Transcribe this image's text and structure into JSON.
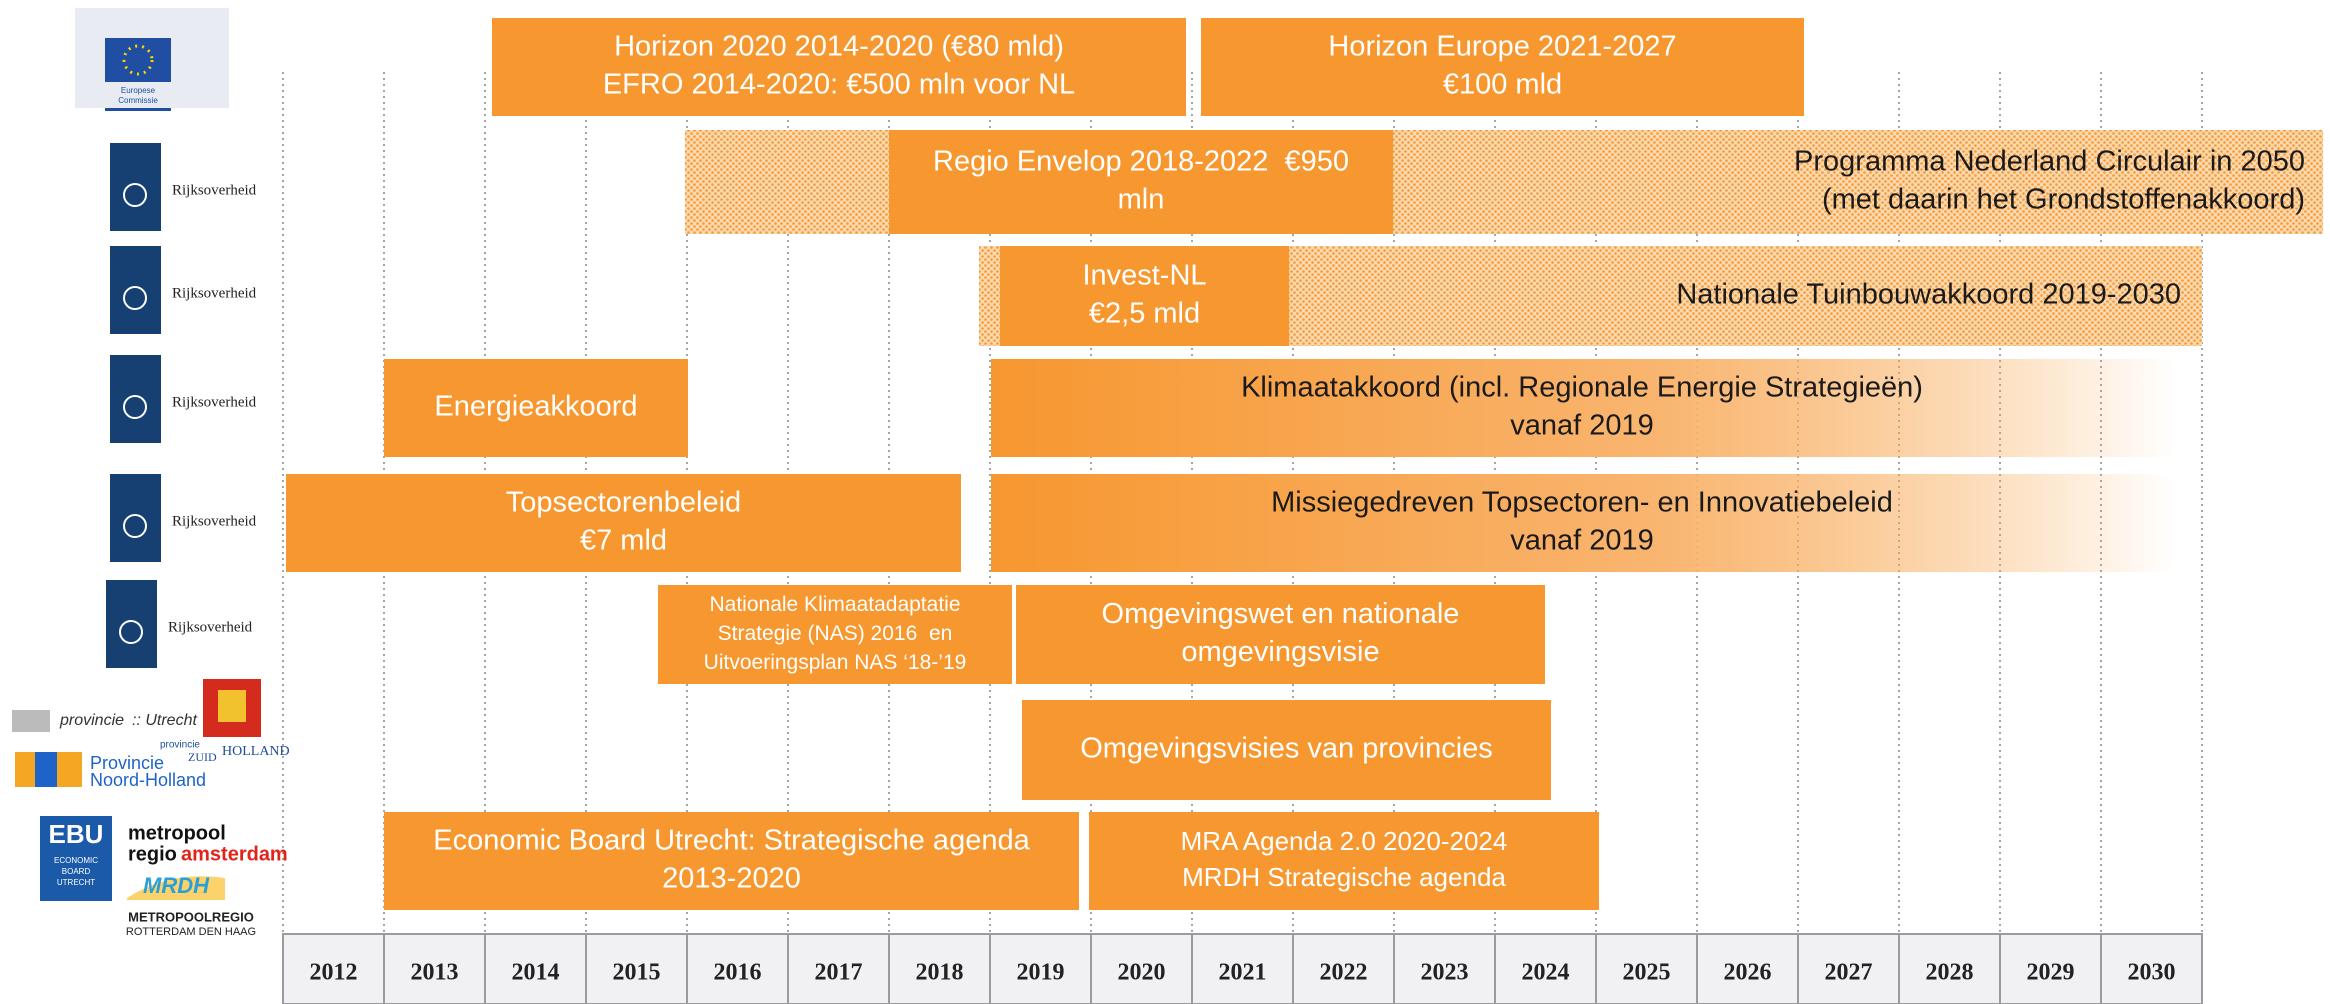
{
  "logos": {
    "eu": [
      "Europese",
      "Commissie"
    ],
    "rijksoverheid": [
      "Rijksoverheid",
      "Rijksoverheid",
      "Rijksoverheid",
      "Rijksoverheid",
      "Rijksoverheid"
    ],
    "utrecht": [
      "provincie",
      ":: Utrecht"
    ],
    "noord_holland": [
      "Provincie",
      "Noord-Holland"
    ],
    "zuid_holland": [
      "provincie",
      "ZUID",
      "HOLLAND"
    ],
    "ebu": [
      "EBU",
      "ECONOMIC",
      "BOARD",
      "UTRECHT"
    ],
    "mra": [
      "metropool",
      "regio",
      "amsterdam"
    ],
    "mrdh": [
      "MRDH",
      "METROPOOLREGIO",
      "ROTTERDAM DEN HAAG"
    ]
  },
  "bars": [
    {
      "lines": [
        "Horizon 2020 2014-2020 (€80 mld)",
        "EFRO 2014-2020: €500 mln voor NL"
      ]
    },
    {
      "lines": [
        "Horizon Europe 2021-2027",
        "€100 mld"
      ]
    },
    {
      "lines": [
        "Programma Nederland Circulair in 2050",
        "(met daarin het Grondstoffenakkoord)"
      ]
    },
    {
      "lines": [
        "Regio Envelop 2018-2022  €950",
        "mln"
      ]
    },
    {
      "lines": [
        "Nationale Tuinbouwakkoord 2019-2030"
      ]
    },
    {
      "lines": [
        "Invest-NL",
        "€2,5 mld"
      ]
    },
    {
      "lines": [
        "Energieakkoord"
      ]
    },
    {
      "lines": [
        "Klimaatakkoord (incl. Regionale Energie Strategieën)",
        "vanaf 2019"
      ]
    },
    {
      "lines": [
        "Topsectorenbeleid",
        "€7 mld"
      ]
    },
    {
      "lines": [
        "Missiegedreven Topsectoren- en Innovatiebeleid",
        "vanaf 2019"
      ]
    },
    {
      "lines": [
        "Nationale Klimaatadaptatie",
        "Strategie (NAS) 2016  en",
        "Uitvoeringsplan NAS ‘18-’19"
      ]
    },
    {
      "lines": [
        "Omgevingswet en nationale",
        "omgevingsvisie"
      ]
    },
    {
      "lines": [
        "Omgevingsvisies van provincies"
      ]
    },
    {
      "lines": [
        "Economic Board Utrecht: Strategische agenda",
        "2013-2020"
      ]
    },
    {
      "lines": [
        "MRA Agenda 2.0 2020-2024",
        "MRDH Strategische agenda"
      ]
    }
  ],
  "years": [
    2012,
    2013,
    2014,
    2015,
    2016,
    2017,
    2018,
    2019,
    2020,
    2021,
    2022,
    2023,
    2024,
    2025,
    2026,
    2027,
    2028,
    2029,
    2030
  ]
}
